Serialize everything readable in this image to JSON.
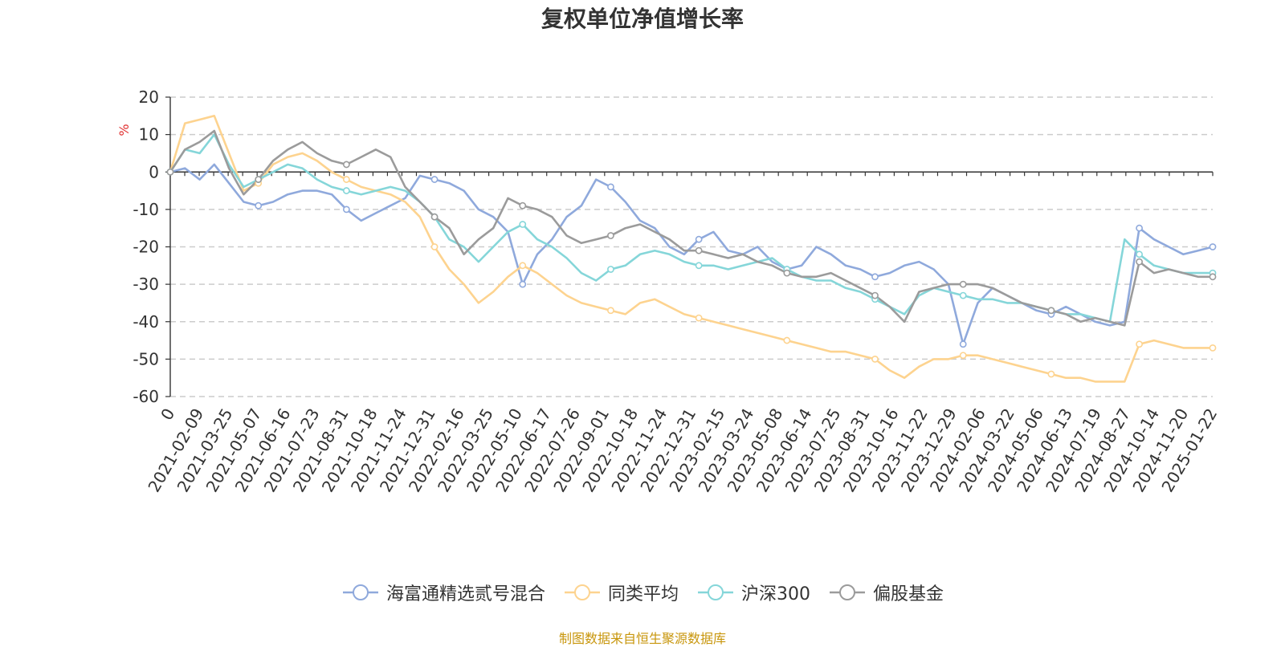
{
  "title": "复权单位净值增长率",
  "source_note": "制图数据来自恒生聚源数据库",
  "chart_data": {
    "type": "line",
    "title": "复权单位净值增长率",
    "ylabel": "%",
    "ylim": [
      -60,
      20
    ],
    "yticks": [
      "20",
      "10",
      "0",
      "-10",
      "-20",
      "-30",
      "-40",
      "-50",
      "-60"
    ],
    "grid": true,
    "legend_position": "bottom",
    "x_tick_labels": [
      "0",
      "2021-02-09",
      "2021-03-25",
      "2021-05-07",
      "2021-06-16",
      "2021-07-23",
      "2021-08-31",
      "2021-10-18",
      "2021-11-24",
      "2021-12-31",
      "2022-02-16",
      "2022-03-25",
      "2022-05-10",
      "2022-06-17",
      "2022-07-26",
      "2022-09-01",
      "2022-10-18",
      "2022-11-24",
      "2022-12-31",
      "2023-02-15",
      "2023-03-24",
      "2023-05-08",
      "2023-06-14",
      "2023-07-25",
      "2023-08-31",
      "2023-10-16",
      "2023-11-22",
      "2023-12-29",
      "2024-02-06",
      "2024-03-22",
      "2024-05-06",
      "2024-06-13",
      "2024-07-19",
      "2024-08-27",
      "2024-10-14",
      "2024-11-20",
      "2025-01-22"
    ],
    "series": [
      {
        "name": "海富通精选贰号混合",
        "color": "#8fa9dc",
        "values": [
          0,
          1,
          -2,
          2,
          -3,
          -8,
          -9,
          -8,
          -6,
          -5,
          -5,
          -6,
          -10,
          -13,
          -11,
          -9,
          -7,
          -1,
          -2,
          -3,
          -5,
          -10,
          -12,
          -16,
          -30,
          -22,
          -18,
          -12,
          -9,
          -2,
          -4,
          -8,
          -13,
          -15,
          -20,
          -22,
          -18,
          -16,
          -21,
          -22,
          -20,
          -24,
          -26,
          -25,
          -20,
          -22,
          -25,
          -26,
          -28,
          -27,
          -25,
          -24,
          -26,
          -30,
          -46,
          -35,
          -31,
          -33,
          -35,
          -37,
          -38,
          -36,
          -38,
          -40,
          -41,
          -40,
          -15,
          -18,
          -20,
          -22,
          -21,
          -20
        ]
      },
      {
        "name": "同类平均",
        "color": "#fdd38f",
        "values": [
          0,
          13,
          14,
          15,
          5,
          -5,
          -3,
          2,
          4,
          5,
          3,
          0,
          -2,
          -4,
          -5,
          -6,
          -8,
          -12,
          -20,
          -26,
          -30,
          -35,
          -32,
          -28,
          -25,
          -27,
          -30,
          -33,
          -35,
          -36,
          -37,
          -38,
          -35,
          -34,
          -36,
          -38,
          -39,
          -40,
          -41,
          -42,
          -43,
          -44,
          -45,
          -46,
          -47,
          -48,
          -48,
          -49,
          -50,
          -53,
          -55,
          -52,
          -50,
          -50,
          -49,
          -49,
          -50,
          -51,
          -52,
          -53,
          -54,
          -55,
          -55,
          -56,
          -56,
          -56,
          -46,
          -45,
          -46,
          -47,
          -47,
          -47
        ]
      },
      {
        "name": "沪深300",
        "color": "#85d6d9",
        "values": [
          0,
          6,
          5,
          10,
          2,
          -4,
          -2,
          0,
          2,
          1,
          -2,
          -4,
          -5,
          -6,
          -5,
          -4,
          -5,
          -8,
          -12,
          -18,
          -20,
          -24,
          -20,
          -16,
          -14,
          -18,
          -20,
          -23,
          -27,
          -29,
          -26,
          -25,
          -22,
          -21,
          -22,
          -24,
          -25,
          -25,
          -26,
          -25,
          -24,
          -23,
          -26,
          -28,
          -29,
          -29,
          -31,
          -32,
          -34,
          -36,
          -38,
          -33,
          -31,
          -32,
          -33,
          -34,
          -34,
          -35,
          -35,
          -36,
          -37,
          -38,
          -38,
          -39,
          -40,
          -18,
          -22,
          -25,
          -26,
          -27,
          -27,
          -27
        ]
      },
      {
        "name": "偏股基金",
        "color": "#9b9b9b",
        "values": [
          0,
          6,
          8,
          11,
          1,
          -6,
          -2,
          3,
          6,
          8,
          5,
          3,
          2,
          4,
          6,
          4,
          -4,
          -8,
          -12,
          -15,
          -22,
          -18,
          -15,
          -7,
          -9,
          -10,
          -12,
          -17,
          -19,
          -18,
          -17,
          -15,
          -14,
          -16,
          -18,
          -21,
          -21,
          -22,
          -23,
          -22,
          -24,
          -25,
          -27,
          -28,
          -28,
          -27,
          -29,
          -31,
          -33,
          -36,
          -40,
          -32,
          -31,
          -30,
          -30,
          -30,
          -31,
          -33,
          -35,
          -36,
          -37,
          -38,
          -40,
          -39,
          -40,
          -41,
          -24,
          -27,
          -26,
          -27,
          -28,
          -28
        ]
      }
    ]
  }
}
